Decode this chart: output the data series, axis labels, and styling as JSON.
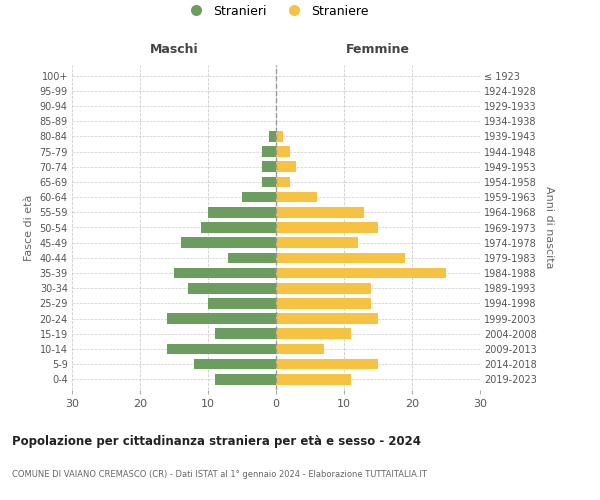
{
  "age_groups": [
    "0-4",
    "5-9",
    "10-14",
    "15-19",
    "20-24",
    "25-29",
    "30-34",
    "35-39",
    "40-44",
    "45-49",
    "50-54",
    "55-59",
    "60-64",
    "65-69",
    "70-74",
    "75-79",
    "80-84",
    "85-89",
    "90-94",
    "95-99",
    "100+"
  ],
  "birth_years": [
    "2019-2023",
    "2014-2018",
    "2009-2013",
    "2004-2008",
    "1999-2003",
    "1994-1998",
    "1989-1993",
    "1984-1988",
    "1979-1983",
    "1974-1978",
    "1969-1973",
    "1964-1968",
    "1959-1963",
    "1954-1958",
    "1949-1953",
    "1944-1948",
    "1939-1943",
    "1934-1938",
    "1929-1933",
    "1924-1928",
    "≤ 1923"
  ],
  "maschi": [
    9,
    12,
    16,
    9,
    16,
    10,
    13,
    15,
    7,
    14,
    11,
    10,
    5,
    2,
    2,
    2,
    1,
    0,
    0,
    0,
    0
  ],
  "femmine": [
    11,
    15,
    7,
    11,
    15,
    14,
    14,
    25,
    19,
    12,
    15,
    13,
    6,
    2,
    3,
    2,
    1,
    0,
    0,
    0,
    0
  ],
  "color_maschi": "#6b9e5e",
  "color_femmine": "#f5c242",
  "title": "Popolazione per cittadinanza straniera per età e sesso - 2024",
  "subtitle": "COMUNE DI VAIANO CREMASCO (CR) - Dati ISTAT al 1° gennaio 2024 - Elaborazione TUTTAITALIA.IT",
  "xlabel_left": "Maschi",
  "xlabel_right": "Femmine",
  "ylabel_left": "Fasce di età",
  "ylabel_right": "Anni di nascita",
  "legend_stranieri": "Stranieri",
  "legend_straniere": "Straniere",
  "xlim": 30,
  "background_color": "#ffffff",
  "grid_color": "#cccccc"
}
